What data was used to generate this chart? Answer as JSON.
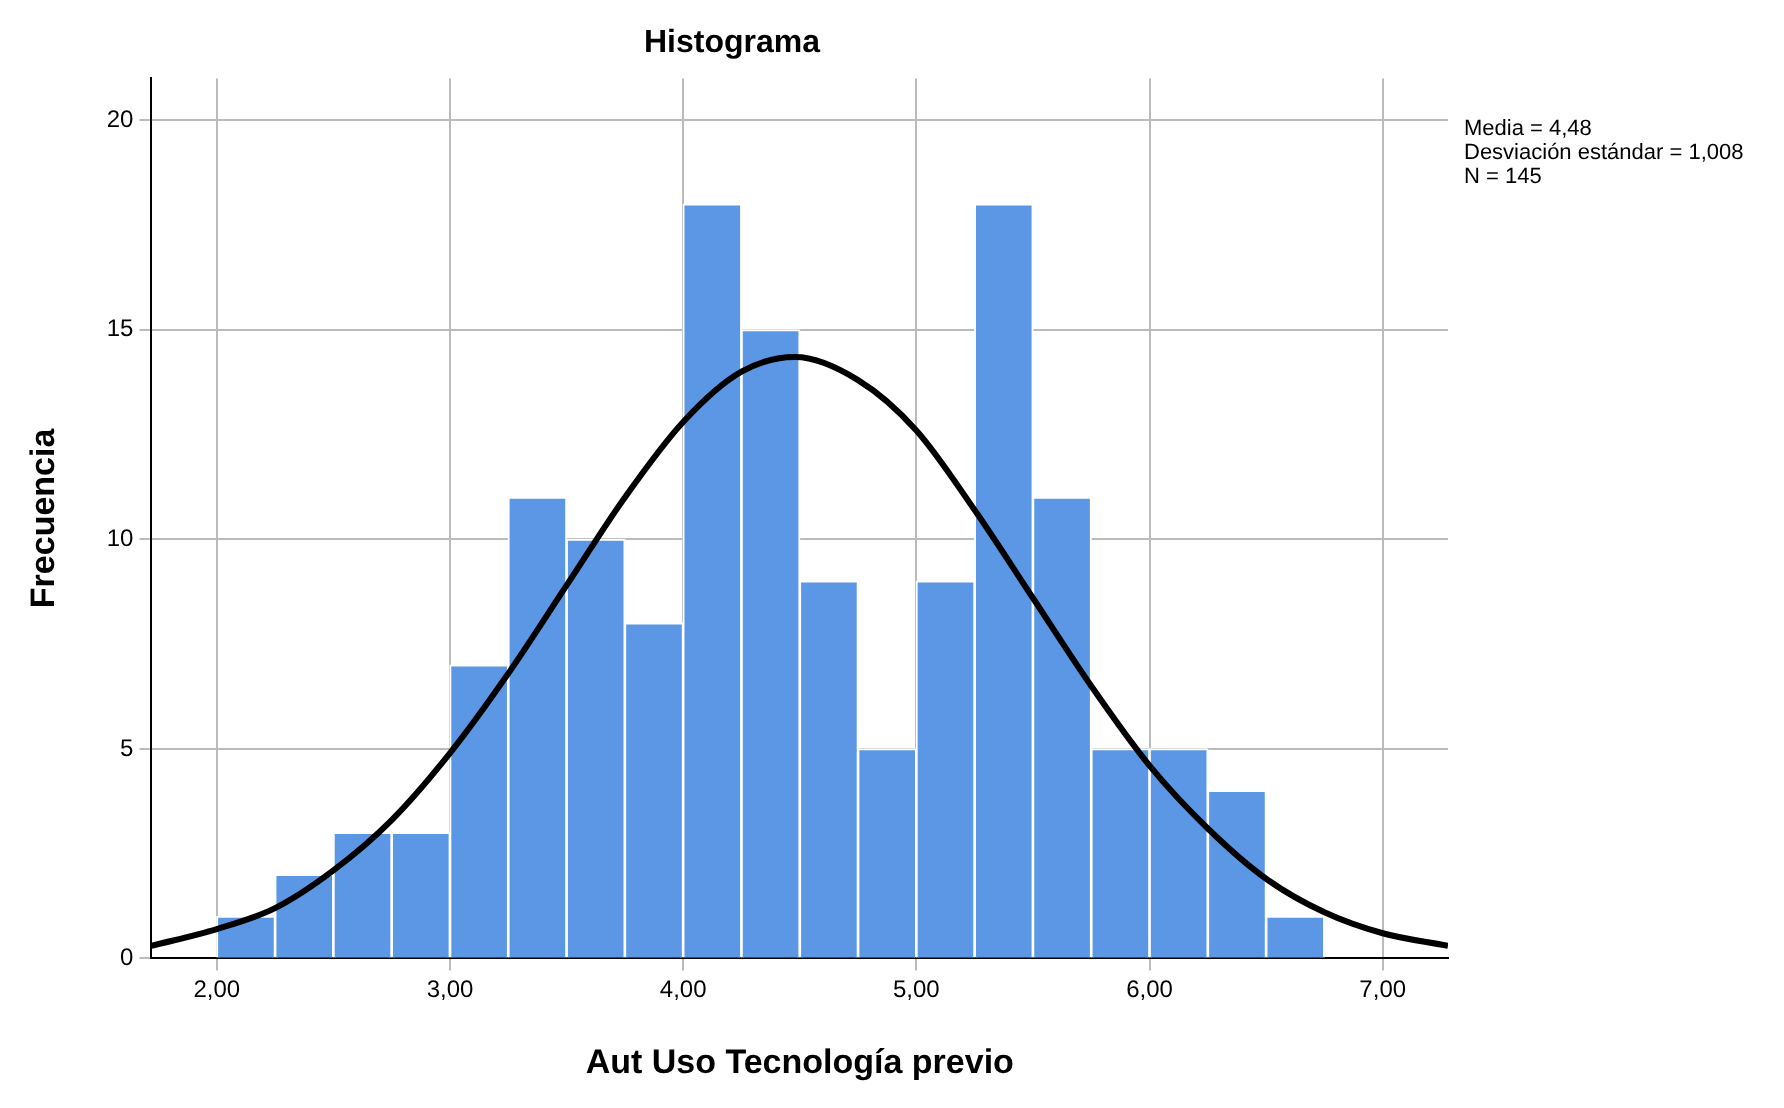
{
  "chart_data": {
    "type": "histogram",
    "title": "Histograma",
    "xlabel": "Aut Uso Tecnología previo",
    "ylabel": "Frecuencia",
    "bins": [
      2,
      2.25,
      2.5,
      2.75,
      3,
      3.25,
      3.5,
      3.75,
      4,
      4.25,
      4.5,
      4.75,
      5,
      5.25,
      5.5,
      5.75,
      6,
      6.25,
      6.5,
      6.75
    ],
    "values": [
      1,
      2,
      3,
      3,
      7,
      11,
      10,
      8,
      18,
      15,
      9,
      5,
      9,
      18,
      11,
      5,
      5,
      4,
      1
    ],
    "color": "#5b97e4",
    "series": [
      {
        "type": "line",
        "color": "#000000",
        "x": [
          1.72,
          2,
          2.25,
          2.5,
          2.75,
          3,
          3.25,
          3.5,
          3.75,
          4,
          4.25,
          4.48,
          4.75,
          5,
          5.25,
          5.5,
          5.75,
          6,
          6.25,
          6.5,
          6.75,
          7,
          7.28
        ],
        "values": [
          0.3,
          0.7,
          1.2,
          2.1,
          3.3,
          4.9,
          6.8,
          8.9,
          11,
          12.8,
          14,
          14.35,
          13.8,
          12.6,
          10.7,
          8.6,
          6.5,
          4.6,
          3.1,
          1.9,
          1.1,
          0.6,
          0.3
        ]
      }
    ],
    "xlim": [
      1.72,
      7.28
    ],
    "xticks": [
      {
        "value": 2,
        "label": "2,00"
      },
      {
        "value": 3,
        "label": "3,00"
      },
      {
        "value": 4,
        "label": "4,00"
      },
      {
        "value": 5,
        "label": "5,00"
      },
      {
        "value": 6,
        "label": "6,00"
      },
      {
        "value": 7,
        "label": "7,00"
      }
    ],
    "ylim": [
      0,
      21
    ],
    "yticks": [
      0,
      5,
      10,
      15,
      20
    ],
    "grid": true,
    "legend": false,
    "marker": "none",
    "line_style": "solid",
    "annotations": [
      "Media = 4,48",
      "Desviación estándar = 1,008",
      "N = 145"
    ]
  }
}
